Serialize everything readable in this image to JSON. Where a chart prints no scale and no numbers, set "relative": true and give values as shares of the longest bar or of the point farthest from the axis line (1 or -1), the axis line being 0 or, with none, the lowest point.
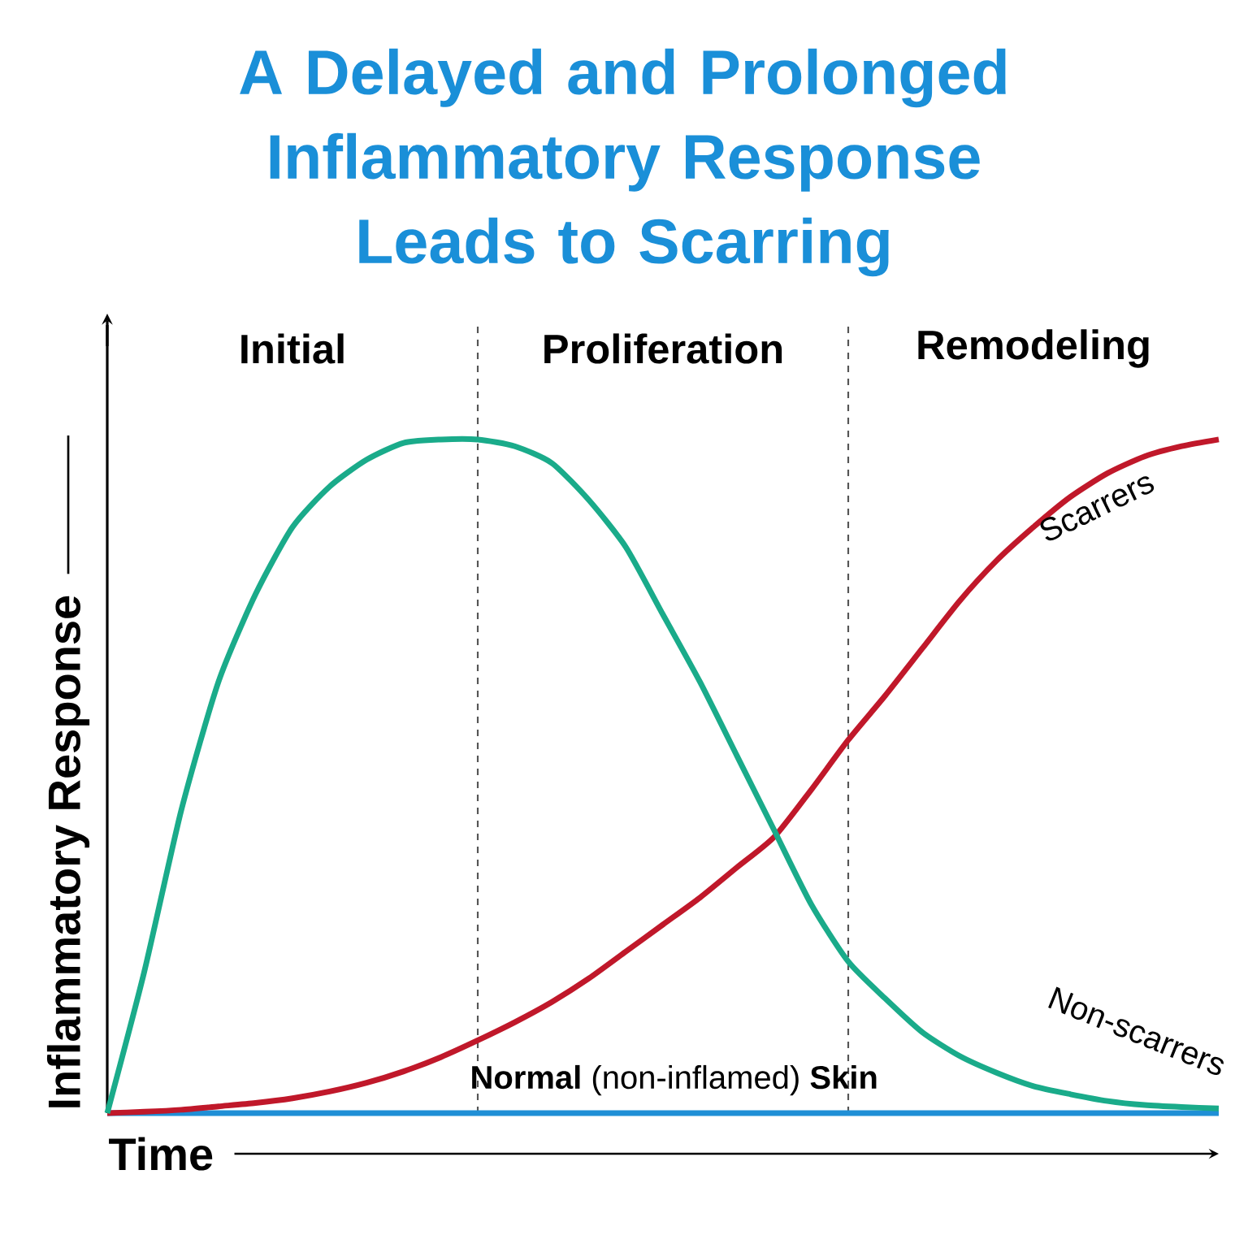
{
  "chart_data": {
    "type": "line",
    "title": "A Delayed and Prolonged Inflammatory Response Leads to Scarring",
    "xlabel": "Time",
    "ylabel": "Inflammatory Response",
    "relative": true,
    "tick_labels": false,
    "categories": [
      null,
      null,
      null,
      null,
      null,
      null,
      null,
      null,
      null,
      null,
      null,
      null,
      null,
      null,
      null,
      null,
      null,
      null,
      null,
      null,
      null,
      null,
      null,
      null,
      null,
      null,
      null,
      null,
      null,
      null,
      null
    ],
    "annotations": [
      "Initial",
      "Proliferation",
      "Remodeling"
    ],
    "series": [
      {
        "name": "Non-scarrers",
        "color": "#1aab8a",
        "values": [
          0,
          0.21,
          0.45,
          0.64,
          0.77,
          0.87,
          0.93,
          0.97,
          0.995,
          1,
          1,
          0.99,
          0.965,
          0.91,
          0.84,
          0.74,
          0.64,
          0.53,
          0.42,
          0.31,
          0.225,
          0.17,
          0.12,
          0.085,
          0.06,
          0.04,
          0.028,
          0.018,
          0.012,
          0.009,
          0.007
        ]
      },
      {
        "name": "Scarrers",
        "color": "#c0182a",
        "values": [
          0,
          0.002,
          0.005,
          0.01,
          0.015,
          0.022,
          0.032,
          0.045,
          0.062,
          0.083,
          0.108,
          0.135,
          0.165,
          0.2,
          0.24,
          0.28,
          0.32,
          0.365,
          0.41,
          0.48,
          0.554,
          0.62,
          0.69,
          0.76,
          0.82,
          0.87,
          0.915,
          0.95,
          0.975,
          0.99,
          1
        ]
      },
      {
        "name": "**Normal** (non-inflamed) **Skin**",
        "color": "#1f8fd6",
        "values": [
          0,
          0,
          0,
          0,
          0,
          0,
          0,
          0,
          0,
          0,
          0,
          0,
          0,
          0,
          0,
          0,
          0,
          0,
          0,
          0,
          0,
          0,
          0,
          0,
          0,
          0,
          0,
          0,
          0,
          0,
          0
        ]
      }
    ]
  }
}
